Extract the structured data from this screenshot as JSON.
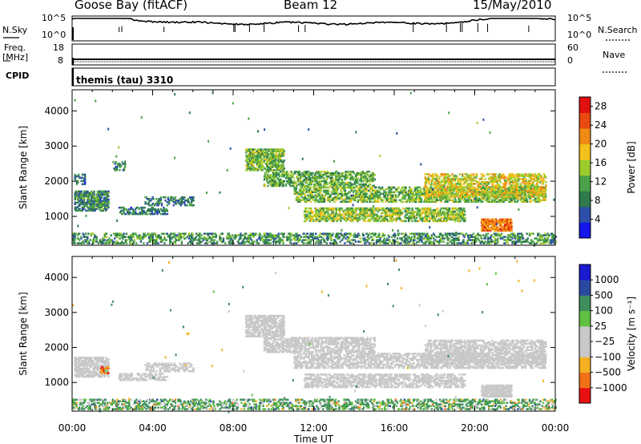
{
  "header": {
    "station": "Goose Bay (fitACF)",
    "beam": "Beam 12",
    "date": "15/May/2010"
  },
  "nsky_panel": {
    "left_label": "N.Sky",
    "right_label": "N.Search",
    "left_ticks": [
      "10^5",
      "10^0"
    ],
    "right_ticks": [
      "10^5",
      "10^0"
    ]
  },
  "freq_panel": {
    "left_label_top": "Freq.",
    "left_label_units": "[MHz]",
    "right_label": "Nave",
    "left_ticks": [
      "18",
      "8"
    ],
    "right_ticks": [
      "60",
      "0"
    ]
  },
  "cpid_panel": {
    "label": "CPID",
    "program": "themis (tau) 3310"
  },
  "colors": {
    "power": [
      "#1515ee",
      "#2d4fa8",
      "#2f7a4a",
      "#4aa34a",
      "#9ccc2c",
      "#f4c21a",
      "#f08a16",
      "#e84a10",
      "#e01010"
    ],
    "velocity": [
      "#e81010",
      "#f07018",
      "#f4b020",
      "#c8c8c8",
      "#c8c8c8",
      "#60c040",
      "#3e8e5e",
      "#2a4aa0",
      "#1a1ad0"
    ],
    "ground_scatter": "#c8c8c8"
  },
  "chart_data": [
    {
      "type": "heatmap",
      "name": "power",
      "xlabel": "",
      "ylabel": "Slant Range [km]",
      "x_range_hours": [
        0,
        24
      ],
      "y_range_km": [
        180,
        4600
      ],
      "y_ticks": [
        1000,
        2000,
        3000,
        4000
      ],
      "colorbar_label": "Power [dB]",
      "colorbar_ticks": [
        "4",
        "8",
        "12",
        "16",
        "20",
        "24",
        "28"
      ],
      "colorbar_range": [
        0,
        30
      ],
      "regions": [
        {
          "t": [
            0.1,
            1.8
          ],
          "r": [
            1150,
            1700
          ],
          "v": 9,
          "d": 0.6
        },
        {
          "t": [
            0.1,
            0.6
          ],
          "r": [
            1900,
            2200
          ],
          "v": 8,
          "d": 0.4
        },
        {
          "t": [
            2.0,
            2.6
          ],
          "r": [
            2300,
            2550
          ],
          "v": 8,
          "d": 0.4
        },
        {
          "t": [
            2.3,
            4.7
          ],
          "r": [
            1050,
            1250
          ],
          "v": 8,
          "d": 0.45
        },
        {
          "t": [
            3.6,
            6.0
          ],
          "r": [
            1300,
            1550
          ],
          "v": 8,
          "d": 0.35
        },
        {
          "t": [
            8.6,
            10.5
          ],
          "r": [
            2300,
            2900
          ],
          "v": 13,
          "d": 0.6
        },
        {
          "t": [
            9.5,
            15.0
          ],
          "r": [
            1850,
            2300
          ],
          "v": 12,
          "d": 0.45
        },
        {
          "t": [
            11.0,
            23.5
          ],
          "r": [
            1400,
            1850
          ],
          "v": 13,
          "d": 0.45
        },
        {
          "t": [
            11.5,
            19.5
          ],
          "r": [
            850,
            1250
          ],
          "v": 14,
          "d": 0.5
        },
        {
          "t": [
            17.5,
            23.5
          ],
          "r": [
            1550,
            2200
          ],
          "v": 17,
          "d": 0.45
        },
        {
          "t": [
            20.3,
            21.8
          ],
          "r": [
            580,
            900
          ],
          "v": 23,
          "d": 0.7
        },
        {
          "t": [
            0.0,
            24.0
          ],
          "r": [
            220,
            520
          ],
          "v": 10,
          "d": 0.35
        }
      ]
    },
    {
      "type": "heatmap",
      "name": "velocity",
      "xlabel": "Time UT",
      "ylabel": "Slant Range [km]",
      "x_ticks": [
        "00:00",
        "04:00",
        "08:00",
        "12:00",
        "16:00",
        "20:00",
        "00:00"
      ],
      "x_range_hours": [
        0,
        24
      ],
      "y_range_km": [
        180,
        4600
      ],
      "y_ticks": [
        1000,
        2000,
        3000,
        4000
      ],
      "colorbar_label": "Velocity [m s⁻¹]",
      "colorbar_ticks": [
        "1000",
        "500",
        "100",
        "25",
        "−25",
        "−100",
        "−500",
        "−1000"
      ],
      "regions": [
        {
          "t": [
            0.1,
            1.8
          ],
          "r": [
            1150,
            1700
          ],
          "v": "gs",
          "d": 0.6
        },
        {
          "t": [
            1.4,
            1.8
          ],
          "r": [
            1250,
            1450
          ],
          "v": -600,
          "d": 0.6
        },
        {
          "t": [
            2.3,
            4.7
          ],
          "r": [
            1050,
            1250
          ],
          "v": "gs",
          "d": 0.45
        },
        {
          "t": [
            3.6,
            6.0
          ],
          "r": [
            1300,
            1550
          ],
          "v": "gs",
          "d": 0.35
        },
        {
          "t": [
            8.6,
            10.5
          ],
          "r": [
            2300,
            2900
          ],
          "v": "gs",
          "d": 0.6
        },
        {
          "t": [
            9.5,
            15.0
          ],
          "r": [
            1850,
            2300
          ],
          "v": "gs",
          "d": 0.45
        },
        {
          "t": [
            11.0,
            23.5
          ],
          "r": [
            1400,
            1850
          ],
          "v": "gs",
          "d": 0.45
        },
        {
          "t": [
            11.5,
            19.5
          ],
          "r": [
            850,
            1250
          ],
          "v": "gs",
          "d": 0.5
        },
        {
          "t": [
            17.5,
            23.5
          ],
          "r": [
            1550,
            2200
          ],
          "v": "gs",
          "d": 0.45
        },
        {
          "t": [
            20.3,
            21.8
          ],
          "r": [
            580,
            900
          ],
          "v": "gs",
          "d": 0.7
        },
        {
          "t": [
            0.0,
            24.0
          ],
          "r": [
            220,
            520
          ],
          "v": 120,
          "d": 0.35
        }
      ]
    }
  ]
}
